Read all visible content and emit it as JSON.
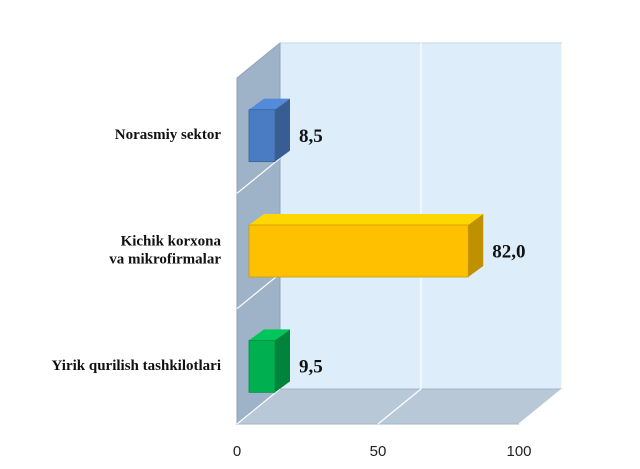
{
  "chart_data": {
    "type": "bar",
    "orientation": "horizontal",
    "three_d": true,
    "categories": [
      [
        "Norasmiy sektor"
      ],
      [
        "Kichik korxona",
        "va mikrofirmalar"
      ],
      [
        "Yirik qurilish tashkilotlari"
      ]
    ],
    "values": [
      8.5,
      82.0,
      9.5
    ],
    "value_labels": [
      "8,5",
      "82,0",
      "9,5"
    ],
    "colors": [
      "#4a7cc3",
      "#ffc000",
      "#00b050"
    ],
    "xlim": [
      0,
      100
    ],
    "ticks": [
      0,
      50,
      100
    ],
    "tick_labels": [
      "0",
      "50",
      "100"
    ],
    "grid": true,
    "legend": "none",
    "background_color": "#ddeefa",
    "floor_color": "#b9c8d7",
    "side_wall_color": "#9fb3c8"
  }
}
